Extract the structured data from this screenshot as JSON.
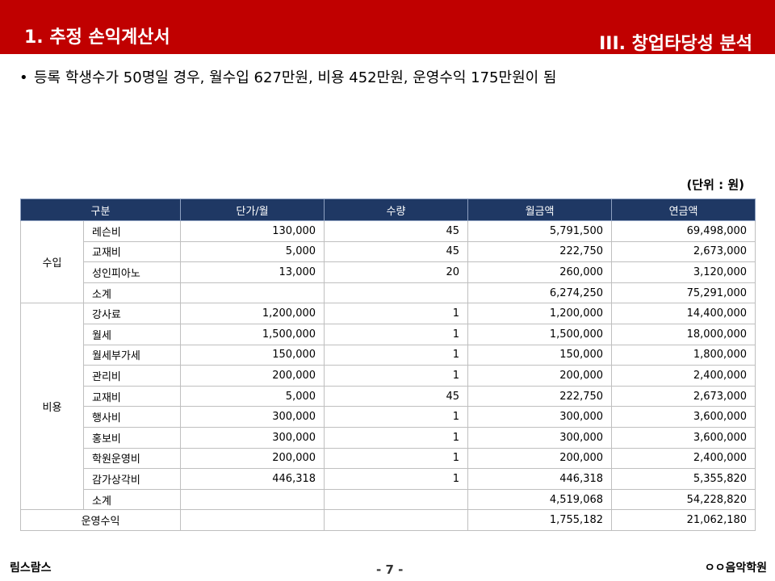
{
  "header": {
    "left_title": "1. 추정 손익계산서",
    "right_title": "III. 창업타당성 분석",
    "bg_color": "#c00000"
  },
  "bullet": {
    "text": "등록 학생수가 50명일 경우, 월수입 627만원, 비용 452만원, 운영수익 175만원이 됨"
  },
  "unit_note": "(단위 : 원)",
  "chart_data": {
    "type": "table",
    "columns": [
      "구분",
      "단가/월",
      "수량",
      "월금액",
      "연금액"
    ],
    "groups": [
      {
        "name": "수입",
        "rows": [
          {
            "item": "레슨비",
            "unit_price": "130,000",
            "qty": "45",
            "monthly": "5,791,500",
            "annual": "69,498,000"
          },
          {
            "item": "교재비",
            "unit_price": "5,000",
            "qty": "45",
            "monthly": "222,750",
            "annual": "2,673,000"
          },
          {
            "item": "성인피아노",
            "unit_price": "13,000",
            "qty": "20",
            "monthly": "260,000",
            "annual": "3,120,000"
          },
          {
            "item": "소계",
            "unit_price": "",
            "qty": "",
            "monthly": "6,274,250",
            "annual": "75,291,000"
          }
        ]
      },
      {
        "name": "비용",
        "rows": [
          {
            "item": "강사료",
            "unit_price": "1,200,000",
            "qty": "1",
            "monthly": "1,200,000",
            "annual": "14,400,000"
          },
          {
            "item": "월세",
            "unit_price": "1,500,000",
            "qty": "1",
            "monthly": "1,500,000",
            "annual": "18,000,000"
          },
          {
            "item": "월세부가세",
            "unit_price": "150,000",
            "qty": "1",
            "monthly": "150,000",
            "annual": "1,800,000"
          },
          {
            "item": "관리비",
            "unit_price": "200,000",
            "qty": "1",
            "monthly": "200,000",
            "annual": "2,400,000"
          },
          {
            "item": "교재비",
            "unit_price": "5,000",
            "qty": "45",
            "monthly": "222,750",
            "annual": "2,673,000"
          },
          {
            "item": "행사비",
            "unit_price": "300,000",
            "qty": "1",
            "monthly": "300,000",
            "annual": "3,600,000"
          },
          {
            "item": "홍보비",
            "unit_price": "300,000",
            "qty": "1",
            "monthly": "300,000",
            "annual": "3,600,000"
          },
          {
            "item": "학원운영비",
            "unit_price": "200,000",
            "qty": "1",
            "monthly": "200,000",
            "annual": "2,400,000"
          },
          {
            "item": "감가상각비",
            "unit_price": "446,318",
            "qty": "1",
            "monthly": "446,318",
            "annual": "5,355,820"
          },
          {
            "item": "소계",
            "unit_price": "",
            "qty": "",
            "monthly": "4,519,068",
            "annual": "54,228,820"
          }
        ]
      }
    ],
    "footer": {
      "label": "운영수익",
      "unit_price": "",
      "qty": "",
      "monthly": "1,755,182",
      "annual": "21,062,180"
    }
  },
  "footer": {
    "left": "림스람스",
    "page": "- 7 -",
    "right": "ㅇㅇ음악학원"
  }
}
